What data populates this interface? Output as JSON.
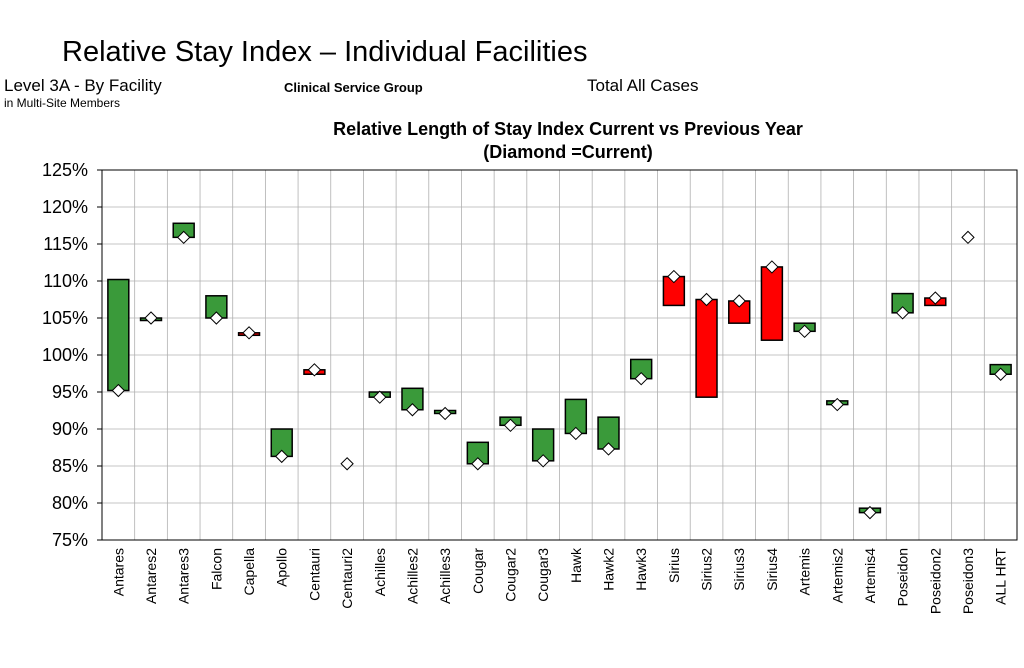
{
  "header": {
    "title": "Relative Stay Index – Individual Facilities",
    "level": "Level 3A - By Facility",
    "level_sub": "in Multi-Site Members",
    "group": "Clinical Service Group",
    "cases": "Total All Cases"
  },
  "colors": {
    "improved": "#3a9a3a",
    "worsened": "#ff0000",
    "gridline": "#b0b0b0"
  },
  "chart_data": {
    "type": "bar",
    "title": "Relative Length of Stay Index Current vs Previous Year",
    "subtitle": "(Diamond =Current)",
    "categories": [
      "Antares",
      "Antares2",
      "Antares3",
      "Falcon",
      "Capella",
      "Apollo",
      "Centauri",
      "Centauri2",
      "Achilles",
      "Achilles2",
      "Achilles3",
      "Cougar",
      "Cougar2",
      "Cougar3",
      "Hawk",
      "Hawk2",
      "Hawk3",
      "Sirius",
      "Sirius2",
      "Sirius3",
      "Sirius4",
      "Artemis",
      "Artemis2",
      "Artemis4",
      "Poseidon",
      "Poseidon2",
      "Poseidon3",
      "ALL HRT"
    ],
    "series": [
      {
        "name": "Previous",
        "values": [
          110.2,
          105.0,
          117.8,
          108.0,
          102.7,
          90.0,
          97.4,
          null,
          95.0,
          95.5,
          92.5,
          88.2,
          91.6,
          90.0,
          94.0,
          91.6,
          99.4,
          106.7,
          94.3,
          104.3,
          102.0,
          104.3,
          93.8,
          79.3,
          108.3,
          106.7,
          null,
          98.7
        ]
      },
      {
        "name": "Current",
        "values": [
          95.2,
          105.0,
          115.9,
          105.0,
          103.0,
          86.3,
          98.0,
          85.3,
          94.3,
          92.6,
          92.1,
          85.3,
          90.5,
          85.7,
          89.4,
          87.3,
          96.8,
          110.6,
          107.5,
          107.3,
          111.9,
          103.2,
          93.3,
          78.7,
          105.7,
          107.7,
          115.9,
          97.4
        ]
      }
    ],
    "ylim": [
      75,
      125
    ],
    "yticks": [
      "75%",
      "80%",
      "85%",
      "90%",
      "95%",
      "100%",
      "105%",
      "110%",
      "115%",
      "120%",
      "125%"
    ],
    "grid": true,
    "legend": "none"
  }
}
